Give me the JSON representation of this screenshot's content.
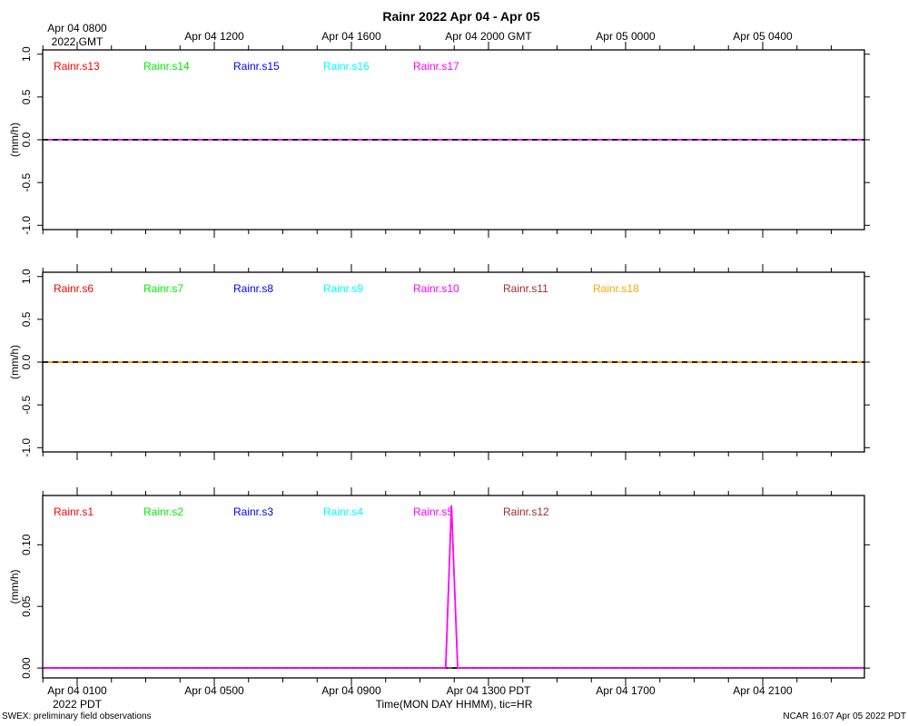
{
  "title": "Rainr 2022 Apr 04 - Apr 05",
  "gmt_label": "2022 GMT",
  "pdt_label": "2022 PDT",
  "xlabel": "Time(MON DAY HHMM), tic=HR",
  "footer_left": "SWEX: preliminary field observations",
  "footer_right": "NCAR 16:07 Apr 05 2022 PDT",
  "time_axis": {
    "start": "Apr 04 0000 PDT",
    "end": "Apr 05 0000 PDT",
    "top_ticks": [
      {
        "label": "Apr 04 0800",
        "hour": 1
      },
      {
        "label": "Apr 04 1200",
        "hour": 5
      },
      {
        "label": "Apr 04 1600",
        "hour": 9
      },
      {
        "label": "Apr 04 2000 GMT",
        "hour": 13
      },
      {
        "label": "Apr 05 0000",
        "hour": 17
      },
      {
        "label": "Apr 05 0400",
        "hour": 21
      }
    ],
    "bottom_ticks": [
      {
        "label": "Apr 04 0100",
        "hour": 1
      },
      {
        "label": "Apr 04 0500",
        "hour": 5
      },
      {
        "label": "Apr 04 0900",
        "hour": 9
      },
      {
        "label": "Apr 04 1300 PDT",
        "hour": 13
      },
      {
        "label": "Apr 04 1700",
        "hour": 17
      },
      {
        "label": "Apr 04 2100",
        "hour": 21
      }
    ]
  },
  "chart_data": [
    {
      "type": "line",
      "ylabel": "(mm/h)",
      "ylim": [
        -1.05,
        1.05
      ],
      "yticks": [
        -1.0,
        -0.5,
        0.0,
        0.5,
        1.0
      ],
      "ytick_labels": [
        "-1.0",
        "-0.5",
        "0.0",
        "0.5",
        "1.0"
      ],
      "x": [
        0,
        24
      ],
      "series": [
        {
          "name": "Rainr.s13",
          "color": "#ff0000",
          "values": [
            0,
            0
          ]
        },
        {
          "name": "Rainr.s14",
          "color": "#00ee00",
          "values": [
            0,
            0
          ]
        },
        {
          "name": "Rainr.s15",
          "color": "#0000ff",
          "values": [
            0,
            0
          ]
        },
        {
          "name": "Rainr.s16",
          "color": "#00ffff",
          "values": [
            0,
            0
          ]
        },
        {
          "name": "Rainr.s17",
          "color": "#ff00ff",
          "values": [
            0,
            0
          ]
        }
      ]
    },
    {
      "type": "line",
      "ylabel": "(mm/h)",
      "ylim": [
        -1.05,
        1.05
      ],
      "yticks": [
        -1.0,
        -0.5,
        0.0,
        0.5,
        1.0
      ],
      "ytick_labels": [
        "-1.0",
        "-0.5",
        "0.0",
        "0.5",
        "1.0"
      ],
      "x": [
        0,
        24
      ],
      "series": [
        {
          "name": "Rainr.s6",
          "color": "#ff0000",
          "values": [
            0,
            0
          ]
        },
        {
          "name": "Rainr.s7",
          "color": "#00ee00",
          "values": [
            0,
            0
          ]
        },
        {
          "name": "Rainr.s8",
          "color": "#0000ff",
          "values": [
            0,
            0
          ]
        },
        {
          "name": "Rainr.s9",
          "color": "#00ffff",
          "values": [
            0,
            0
          ]
        },
        {
          "name": "Rainr.s10",
          "color": "#ff00ff",
          "values": [
            0,
            0
          ]
        },
        {
          "name": "Rainr.s11",
          "color": "#a52a2a",
          "values": [
            0,
            0
          ]
        },
        {
          "name": "Rainr.s18",
          "color": "#ffa500",
          "values": [
            0,
            0
          ]
        }
      ]
    },
    {
      "type": "line",
      "ylabel": "(mm/h)",
      "ylim": [
        -0.008,
        0.14
      ],
      "yticks": [
        0.0,
        0.05,
        0.1
      ],
      "ytick_labels": [
        "0.00",
        "0.05",
        "0.10"
      ],
      "x": [
        0,
        24
      ],
      "series": [
        {
          "name": "Rainr.s1",
          "color": "#ff0000",
          "values": [
            0,
            0
          ]
        },
        {
          "name": "Rainr.s2",
          "color": "#00ee00",
          "values": [
            0,
            0
          ]
        },
        {
          "name": "Rainr.s3",
          "color": "#0000ff",
          "values": [
            0,
            0
          ]
        },
        {
          "name": "Rainr.s4",
          "color": "#00ffff",
          "values": [
            0,
            0
          ]
        },
        {
          "name": "Rainr.s5",
          "color": "#ff00ff",
          "x": [
            0,
            11.75,
            11.92,
            12.1,
            24
          ],
          "values": [
            0,
            0,
            0.132,
            0,
            0
          ]
        },
        {
          "name": "Rainr.s12",
          "color": "#a52a2a",
          "values": [
            0,
            0
          ]
        }
      ]
    }
  ]
}
